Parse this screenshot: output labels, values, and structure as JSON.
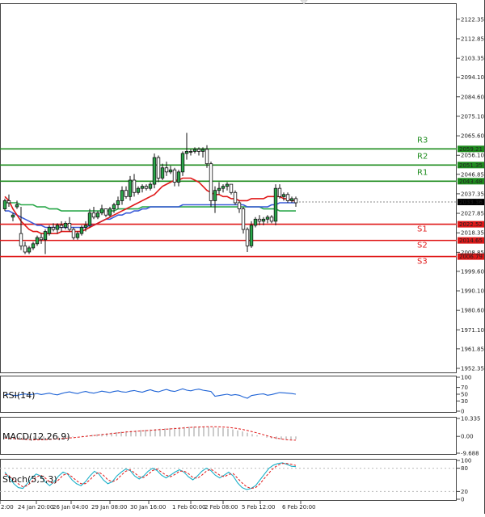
{
  "chart_data": [
    {
      "type": "candlestick",
      "title": "",
      "price_ticks": [
        "2122.35",
        "2112.85",
        "2103.35",
        "2094.10",
        "2084.60",
        "2075.10",
        "2065.60",
        "2056.10",
        "2046.85",
        "2037.35",
        "2027.85",
        "2018.35",
        "2008.85",
        "1999.60",
        "1990.10",
        "1980.60",
        "1971.10",
        "1961.85",
        "1952.35"
      ],
      "y_range": [
        1952.35,
        2127.0
      ],
      "time_ticks": [
        "2:00",
        "24 Jan 20:00",
        "26 Jan 04:00",
        "29 Jan 08:00",
        "30 Jan 16:00",
        "1 Feb 00:00",
        "2 Feb 08:00",
        "5 Feb 12:00",
        "6 Feb 20:00"
      ],
      "current_price": "2033.36",
      "levels": [
        {
          "name": "R3",
          "value": 2059.21,
          "label": "2059.21",
          "color": "#1e8c1e"
        },
        {
          "name": "R2",
          "value": 2051.35,
          "label": "2051.35",
          "color": "#1e8c1e"
        },
        {
          "name": "R1",
          "value": 2043.48,
          "label": "2043.48",
          "color": "#1e8c1e"
        },
        {
          "name": "S1",
          "value": 2022.52,
          "label": "2022.52",
          "color": "#e01818"
        },
        {
          "name": "S2",
          "value": 2014.65,
          "label": "2014.65",
          "color": "#e01818"
        },
        {
          "name": "S3",
          "value": 2006.79,
          "label": "2006.79",
          "color": "#e01818"
        }
      ],
      "candles": [
        [
          2030,
          2035,
          2029,
          2034
        ],
        [
          2034,
          2037,
          2031,
          2033
        ],
        [
          2026,
          2028,
          2024,
          2027
        ],
        [
          2031,
          2034,
          2030,
          2032
        ],
        [
          2018,
          2031,
          2010,
          2012
        ],
        [
          2012,
          2014,
          2008,
          2009
        ],
        [
          2009,
          2012,
          2008,
          2011
        ],
        [
          2011,
          2014,
          2010,
          2013
        ],
        [
          2013,
          2017,
          2012,
          2016
        ],
        [
          2016,
          2018,
          2013,
          2015
        ],
        [
          2015,
          2020,
          2008,
          2019
        ],
        [
          2018,
          2022,
          2017,
          2021
        ],
        [
          2021,
          2023,
          2019,
          2020
        ],
        [
          2020,
          2023,
          2018,
          2022
        ],
        [
          2022,
          2024,
          2019,
          2021
        ],
        [
          2021,
          2024,
          2020,
          2023
        ],
        [
          2023,
          2026,
          2019,
          2020
        ],
        [
          2020,
          2021,
          2015,
          2016
        ],
        [
          2016,
          2019,
          2015,
          2018
        ],
        [
          2018,
          2022,
          2017,
          2021
        ],
        [
          2021,
          2024,
          2019,
          2022
        ],
        [
          2022,
          2030,
          2021,
          2028
        ],
        [
          2028,
          2031,
          2025,
          2026
        ],
        [
          2026,
          2029,
          2025,
          2028
        ],
        [
          2028,
          2032,
          2027,
          2030
        ],
        [
          2030,
          2030,
          2026,
          2027
        ],
        [
          2027,
          2031,
          2026,
          2030
        ],
        [
          2030,
          2033,
          2028,
          2032
        ],
        [
          2032,
          2036,
          2030,
          2034
        ],
        [
          2034,
          2041,
          2032,
          2039
        ],
        [
          2039,
          2041,
          2035,
          2036
        ],
        [
          2036,
          2046,
          2034,
          2044
        ],
        [
          2044,
          2047,
          2036,
          2038
        ],
        [
          2038,
          2041,
          2037,
          2040
        ],
        [
          2040,
          2042,
          2038,
          2041
        ],
        [
          2041,
          2042,
          2039,
          2040
        ],
        [
          2040,
          2043,
          2039,
          2042
        ],
        [
          2042,
          2057,
          2040,
          2055
        ],
        [
          2055,
          2056,
          2043,
          2045
        ],
        [
          2045,
          2052,
          2044,
          2050
        ],
        [
          2050,
          2053,
          2046,
          2048
        ],
        [
          2048,
          2051,
          2047,
          2049
        ],
        [
          2049,
          2050,
          2041,
          2043
        ],
        [
          2043,
          2049,
          2041,
          2048
        ],
        [
          2048,
          2058,
          2046,
          2057
        ],
        [
          2057,
          2067,
          2054,
          2058
        ],
        [
          2058,
          2059,
          2056,
          2058
        ],
        [
          2058,
          2060,
          2057,
          2059
        ],
        [
          2059,
          2060,
          2056,
          2058
        ],
        [
          2058,
          2060,
          2055,
          2059
        ],
        [
          2059,
          2061,
          2050,
          2052
        ],
        [
          2052,
          2053,
          2031,
          2034
        ],
        [
          2034,
          2041,
          2028,
          2039
        ],
        [
          2039,
          2043,
          2037,
          2040
        ],
        [
          2040,
          2042,
          2038,
          2041
        ],
        [
          2041,
          2043,
          2039,
          2042
        ],
        [
          2042,
          2042,
          2037,
          2038
        ],
        [
          2038,
          2039,
          2032,
          2033
        ],
        [
          2033,
          2034,
          2028,
          2030
        ],
        [
          2030,
          2031,
          2018,
          2020
        ],
        [
          2020,
          2021,
          2009,
          2012
        ],
        [
          2012,
          2024,
          2011,
          2022
        ],
        [
          2022,
          2026,
          2021,
          2025
        ],
        [
          2025,
          2027,
          2022,
          2024
        ],
        [
          2024,
          2026,
          2022,
          2025
        ],
        [
          2025,
          2027,
          2023,
          2026
        ],
        [
          2026,
          2027,
          2023,
          2024
        ],
        [
          2024,
          2042,
          2022,
          2040
        ],
        [
          2040,
          2042,
          2035,
          2036
        ],
        [
          2036,
          2038,
          2034,
          2037
        ],
        [
          2037,
          2038,
          2033,
          2034
        ],
        [
          2034,
          2036,
          2033,
          2035
        ],
        [
          2035,
          2036,
          2031,
          2033
        ]
      ],
      "ma_red": [
        2036,
        2034,
        2030,
        2027,
        2024,
        2022,
        2020,
        2019,
        2019,
        2018,
        2018,
        2018,
        2018,
        2018,
        2019,
        2019,
        2019,
        2019,
        2019,
        2019,
        2020,
        2021,
        2022,
        2023,
        2024,
        2025,
        2026,
        2027,
        2028,
        2029,
        2030,
        2031,
        2032,
        2033,
        2034,
        2035,
        2036,
        2037,
        2039,
        2041,
        2042,
        2043,
        2044,
        2044,
        2045,
        2045,
        2045,
        2044,
        2043,
        2041,
        2039,
        2038,
        2037,
        2037,
        2036,
        2036,
        2035,
        2035,
        2034,
        2034,
        2034,
        2035,
        2035,
        2035,
        2035,
        2036,
        2036,
        2036,
        2036,
        2035,
        2035,
        2034,
        2034
      ],
      "ma_green": [
        2033,
        2033,
        2033,
        2033,
        2032,
        2032,
        2032,
        2032,
        2031,
        2031,
        2031,
        2030,
        2030,
        2030,
        2029,
        2029,
        2029,
        2029,
        2029,
        2029,
        2029,
        2029,
        2029,
        2029,
        2029,
        2029,
        2029,
        2029,
        2030,
        2030,
        2030,
        2030,
        2030,
        2030,
        2031,
        2031,
        2031,
        2031,
        2031,
        2031,
        2031,
        2031,
        2031,
        2031,
        2031,
        2031,
        2031,
        2031,
        2031,
        2031,
        2031,
        2031,
        2031,
        2031,
        2031,
        2031,
        2031,
        2031,
        2031,
        2031,
        2031,
        2031,
        2031,
        2031,
        2030,
        2030,
        2030,
        2030,
        2029,
        2029,
        2029,
        2029,
        2029
      ],
      "ma_blue": [
        2029,
        2029,
        2028,
        2027,
        2026,
        2025,
        2024,
        2023,
        2022,
        2022,
        2021,
        2021,
        2021,
        2021,
        2021,
        2021,
        2021,
        2021,
        2021,
        2021,
        2021,
        2022,
        2022,
        2023,
        2024,
        2025,
        2025,
        2026,
        2027,
        2027,
        2028,
        2028,
        2029,
        2029,
        2030,
        2030,
        2031,
        2031,
        2031,
        2031,
        2031,
        2031,
        2031,
        2031,
        2032,
        2032,
        2032,
        2032,
        2032,
        2032,
        2032,
        2032,
        2032,
        2032,
        2032,
        2032,
        2032,
        2032,
        2032,
        2032,
        2031,
        2031,
        2031,
        2031,
        2031,
        2031,
        2032,
        2032,
        2033,
        2033,
        2033,
        2033,
        2033
      ]
    },
    {
      "type": "line",
      "label": "RSI(14)",
      "ticks": [
        "100",
        "70",
        "50",
        "30",
        "0"
      ],
      "y_range": [
        0,
        100
      ],
      "values": [
        48,
        50,
        47,
        46,
        49,
        51,
        48,
        50,
        52,
        49,
        51,
        53,
        50,
        48,
        52,
        55,
        57,
        54,
        52,
        56,
        58,
        55,
        53,
        56,
        59,
        57,
        55,
        58,
        60,
        57,
        56,
        59,
        61,
        58,
        56,
        60,
        63,
        59,
        57,
        61,
        64,
        60,
        58,
        62,
        66,
        62,
        60,
        63,
        65,
        62,
        60,
        58,
        44,
        46,
        48,
        50,
        47,
        49,
        47,
        42,
        38,
        46,
        48,
        50,
        51,
        47,
        49,
        52,
        55,
        54,
        53,
        52,
        50
      ],
      "color": "#1e63d6"
    },
    {
      "type": "bar",
      "label": "MACD(12,26,9)",
      "ticks": [
        "10.335",
        "0.00",
        "-9.688"
      ],
      "y_range": [
        -9.688,
        10.335
      ],
      "values": [
        -1.0,
        -1.2,
        -1.5,
        -1.8,
        -2.0,
        -2.1,
        -2.0,
        -1.8,
        -1.6,
        -1.4,
        -1.2,
        -1.0,
        -0.8,
        -0.6,
        -0.3,
        0.0,
        0.3,
        0.6,
        0.9,
        1.2,
        1.5,
        1.8,
        2.1,
        2.4,
        2.7,
        3.0,
        3.2,
        3.4,
        3.6,
        3.8,
        4.0,
        4.2,
        4.4,
        4.6,
        4.8,
        5.0,
        5.2,
        5.4,
        5.5,
        5.6,
        5.6,
        5.5,
        5.4,
        5.2,
        5.0,
        4.8,
        4.5,
        4.0,
        3.4,
        2.8,
        2.1,
        1.3,
        0.6,
        -0.1,
        -0.7,
        -1.2,
        -1.6,
        -1.8,
        -1.9,
        -1.8,
        -1.6
      ],
      "signal": [
        -1.0,
        -1.1,
        -1.3,
        -1.5,
        -1.7,
        -1.9,
        -2.0,
        -2.0,
        -1.9,
        -1.8,
        -1.6,
        -1.4,
        -1.2,
        -1.0,
        -0.8,
        -0.5,
        -0.2,
        0.1,
        0.4,
        0.7,
        1.0,
        1.3,
        1.6,
        1.9,
        2.2,
        2.5,
        2.7,
        2.9,
        3.1,
        3.3,
        3.5,
        3.7,
        3.9,
        4.1,
        4.3,
        4.5,
        4.7,
        4.9,
        5.1,
        5.3,
        5.4,
        5.5,
        5.6,
        5.6,
        5.5,
        5.4,
        5.2,
        4.9,
        4.5,
        4.0,
        3.4,
        2.7,
        2.0,
        1.2,
        0.4,
        -0.4,
        -1.0,
        -1.5,
        -1.9,
        -2.1,
        -2.2
      ],
      "color": "#999999",
      "signal_color": "#e01818"
    },
    {
      "type": "line",
      "label": "Stoch(5,5,3)",
      "ticks": [
        "100",
        "80",
        "20",
        "0"
      ],
      "y_range": [
        0,
        100
      ],
      "k": [
        70,
        55,
        40,
        30,
        28,
        40,
        55,
        65,
        60,
        45,
        35,
        45,
        60,
        70,
        65,
        50,
        40,
        35,
        45,
        60,
        72,
        65,
        50,
        40,
        45,
        60,
        70,
        78,
        74,
        60,
        52,
        60,
        72,
        80,
        74,
        62,
        55,
        62,
        70,
        76,
        70,
        58,
        50,
        60,
        72,
        80,
        74,
        62,
        55,
        62,
        70,
        60,
        42,
        30,
        25,
        28,
        35,
        50,
        65,
        80,
        88,
        92,
        94,
        90,
        85,
        84
      ],
      "d": [
        65,
        60,
        50,
        40,
        32,
        35,
        45,
        57,
        62,
        55,
        45,
        40,
        50,
        62,
        66,
        58,
        48,
        40,
        40,
        50,
        62,
        70,
        62,
        50,
        45,
        50,
        62,
        72,
        76,
        68,
        58,
        56,
        64,
        74,
        78,
        70,
        62,
        58,
        64,
        72,
        73,
        66,
        56,
        54,
        62,
        72,
        78,
        70,
        62,
        58,
        64,
        66,
        54,
        42,
        32,
        28,
        30,
        40,
        54,
        68,
        80,
        88,
        92,
        92,
        90,
        87
      ],
      "k_color": "#1ab0c8",
      "d_color": "#e01818"
    }
  ]
}
